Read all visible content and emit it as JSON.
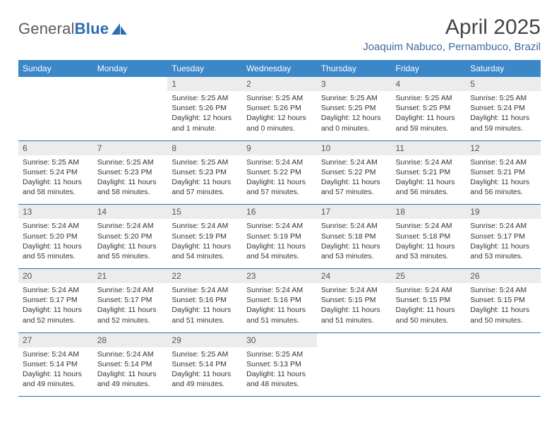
{
  "header": {
    "logo_general": "General",
    "logo_blue": "Blue",
    "title": "April 2025",
    "subtitle": "Joaquim Nabuco, Pernambuco, Brazil"
  },
  "colors": {
    "header_bg": "#3b87c8",
    "header_text": "#ffffff",
    "daynum_bg": "#ececec",
    "cell_border": "#3b6a9a",
    "subtitle_color": "#3a6a9a",
    "title_color": "#444444",
    "logo_gray": "#5a5a5a",
    "logo_blue": "#2a6cb0"
  },
  "weekdays": [
    "Sunday",
    "Monday",
    "Tuesday",
    "Wednesday",
    "Thursday",
    "Friday",
    "Saturday"
  ],
  "weeks": [
    [
      {
        "num": "",
        "sunrise": "",
        "sunset": "",
        "daylight": ""
      },
      {
        "num": "",
        "sunrise": "",
        "sunset": "",
        "daylight": ""
      },
      {
        "num": "1",
        "sunrise": "Sunrise: 5:25 AM",
        "sunset": "Sunset: 5:26 PM",
        "daylight": "Daylight: 12 hours and 1 minute."
      },
      {
        "num": "2",
        "sunrise": "Sunrise: 5:25 AM",
        "sunset": "Sunset: 5:26 PM",
        "daylight": "Daylight: 12 hours and 0 minutes."
      },
      {
        "num": "3",
        "sunrise": "Sunrise: 5:25 AM",
        "sunset": "Sunset: 5:25 PM",
        "daylight": "Daylight: 12 hours and 0 minutes."
      },
      {
        "num": "4",
        "sunrise": "Sunrise: 5:25 AM",
        "sunset": "Sunset: 5:25 PM",
        "daylight": "Daylight: 11 hours and 59 minutes."
      },
      {
        "num": "5",
        "sunrise": "Sunrise: 5:25 AM",
        "sunset": "Sunset: 5:24 PM",
        "daylight": "Daylight: 11 hours and 59 minutes."
      }
    ],
    [
      {
        "num": "6",
        "sunrise": "Sunrise: 5:25 AM",
        "sunset": "Sunset: 5:24 PM",
        "daylight": "Daylight: 11 hours and 58 minutes."
      },
      {
        "num": "7",
        "sunrise": "Sunrise: 5:25 AM",
        "sunset": "Sunset: 5:23 PM",
        "daylight": "Daylight: 11 hours and 58 minutes."
      },
      {
        "num": "8",
        "sunrise": "Sunrise: 5:25 AM",
        "sunset": "Sunset: 5:23 PM",
        "daylight": "Daylight: 11 hours and 57 minutes."
      },
      {
        "num": "9",
        "sunrise": "Sunrise: 5:24 AM",
        "sunset": "Sunset: 5:22 PM",
        "daylight": "Daylight: 11 hours and 57 minutes."
      },
      {
        "num": "10",
        "sunrise": "Sunrise: 5:24 AM",
        "sunset": "Sunset: 5:22 PM",
        "daylight": "Daylight: 11 hours and 57 minutes."
      },
      {
        "num": "11",
        "sunrise": "Sunrise: 5:24 AM",
        "sunset": "Sunset: 5:21 PM",
        "daylight": "Daylight: 11 hours and 56 minutes."
      },
      {
        "num": "12",
        "sunrise": "Sunrise: 5:24 AM",
        "sunset": "Sunset: 5:21 PM",
        "daylight": "Daylight: 11 hours and 56 minutes."
      }
    ],
    [
      {
        "num": "13",
        "sunrise": "Sunrise: 5:24 AM",
        "sunset": "Sunset: 5:20 PM",
        "daylight": "Daylight: 11 hours and 55 minutes."
      },
      {
        "num": "14",
        "sunrise": "Sunrise: 5:24 AM",
        "sunset": "Sunset: 5:20 PM",
        "daylight": "Daylight: 11 hours and 55 minutes."
      },
      {
        "num": "15",
        "sunrise": "Sunrise: 5:24 AM",
        "sunset": "Sunset: 5:19 PM",
        "daylight": "Daylight: 11 hours and 54 minutes."
      },
      {
        "num": "16",
        "sunrise": "Sunrise: 5:24 AM",
        "sunset": "Sunset: 5:19 PM",
        "daylight": "Daylight: 11 hours and 54 minutes."
      },
      {
        "num": "17",
        "sunrise": "Sunrise: 5:24 AM",
        "sunset": "Sunset: 5:18 PM",
        "daylight": "Daylight: 11 hours and 53 minutes."
      },
      {
        "num": "18",
        "sunrise": "Sunrise: 5:24 AM",
        "sunset": "Sunset: 5:18 PM",
        "daylight": "Daylight: 11 hours and 53 minutes."
      },
      {
        "num": "19",
        "sunrise": "Sunrise: 5:24 AM",
        "sunset": "Sunset: 5:17 PM",
        "daylight": "Daylight: 11 hours and 53 minutes."
      }
    ],
    [
      {
        "num": "20",
        "sunrise": "Sunrise: 5:24 AM",
        "sunset": "Sunset: 5:17 PM",
        "daylight": "Daylight: 11 hours and 52 minutes."
      },
      {
        "num": "21",
        "sunrise": "Sunrise: 5:24 AM",
        "sunset": "Sunset: 5:17 PM",
        "daylight": "Daylight: 11 hours and 52 minutes."
      },
      {
        "num": "22",
        "sunrise": "Sunrise: 5:24 AM",
        "sunset": "Sunset: 5:16 PM",
        "daylight": "Daylight: 11 hours and 51 minutes."
      },
      {
        "num": "23",
        "sunrise": "Sunrise: 5:24 AM",
        "sunset": "Sunset: 5:16 PM",
        "daylight": "Daylight: 11 hours and 51 minutes."
      },
      {
        "num": "24",
        "sunrise": "Sunrise: 5:24 AM",
        "sunset": "Sunset: 5:15 PM",
        "daylight": "Daylight: 11 hours and 51 minutes."
      },
      {
        "num": "25",
        "sunrise": "Sunrise: 5:24 AM",
        "sunset": "Sunset: 5:15 PM",
        "daylight": "Daylight: 11 hours and 50 minutes."
      },
      {
        "num": "26",
        "sunrise": "Sunrise: 5:24 AM",
        "sunset": "Sunset: 5:15 PM",
        "daylight": "Daylight: 11 hours and 50 minutes."
      }
    ],
    [
      {
        "num": "27",
        "sunrise": "Sunrise: 5:24 AM",
        "sunset": "Sunset: 5:14 PM",
        "daylight": "Daylight: 11 hours and 49 minutes."
      },
      {
        "num": "28",
        "sunrise": "Sunrise: 5:24 AM",
        "sunset": "Sunset: 5:14 PM",
        "daylight": "Daylight: 11 hours and 49 minutes."
      },
      {
        "num": "29",
        "sunrise": "Sunrise: 5:25 AM",
        "sunset": "Sunset: 5:14 PM",
        "daylight": "Daylight: 11 hours and 49 minutes."
      },
      {
        "num": "30",
        "sunrise": "Sunrise: 5:25 AM",
        "sunset": "Sunset: 5:13 PM",
        "daylight": "Daylight: 11 hours and 48 minutes."
      },
      {
        "num": "",
        "sunrise": "",
        "sunset": "",
        "daylight": ""
      },
      {
        "num": "",
        "sunrise": "",
        "sunset": "",
        "daylight": ""
      },
      {
        "num": "",
        "sunrise": "",
        "sunset": "",
        "daylight": ""
      }
    ]
  ]
}
